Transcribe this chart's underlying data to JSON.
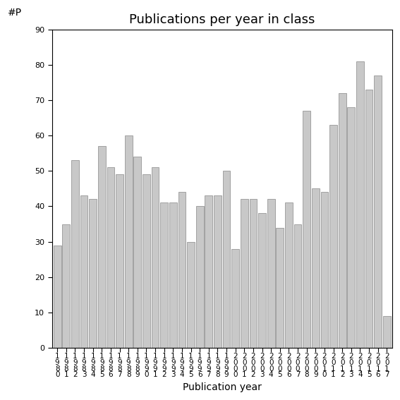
{
  "years": [
    "1980",
    "1981",
    "1982",
    "1983",
    "1984",
    "1985",
    "1986",
    "1987",
    "1988",
    "1989",
    "1990",
    "1991",
    "1992",
    "1993",
    "1994",
    "1995",
    "1996",
    "1997",
    "1998",
    "1999",
    "2000",
    "2001",
    "2002",
    "2003",
    "2004",
    "2005",
    "2006",
    "2007",
    "2008",
    "2009",
    "2010",
    "2011",
    "2012",
    "2013",
    "2014",
    "2015",
    "2016",
    "2017"
  ],
  "values": [
    29,
    35,
    53,
    43,
    42,
    57,
    51,
    49,
    60,
    54,
    49,
    51,
    41,
    41,
    44,
    30,
    40,
    43,
    43,
    50,
    28,
    42,
    42,
    38,
    42,
    34,
    41,
    35,
    67,
    45,
    44,
    63,
    72,
    68,
    81,
    73,
    77,
    9
  ],
  "bar_color": "#c8c8c8",
  "bar_edge_color": "#888888",
  "title": "Publications per year in class",
  "xlabel": "Publication year",
  "ylabel_annotation": "#P",
  "ylim": [
    0,
    90
  ],
  "yticks": [
    0,
    10,
    20,
    30,
    40,
    50,
    60,
    70,
    80,
    90
  ],
  "bg_color": "#ffffff",
  "title_fontsize": 13,
  "label_fontsize": 10,
  "tick_fontsize": 8,
  "bar_linewidth": 0.5
}
